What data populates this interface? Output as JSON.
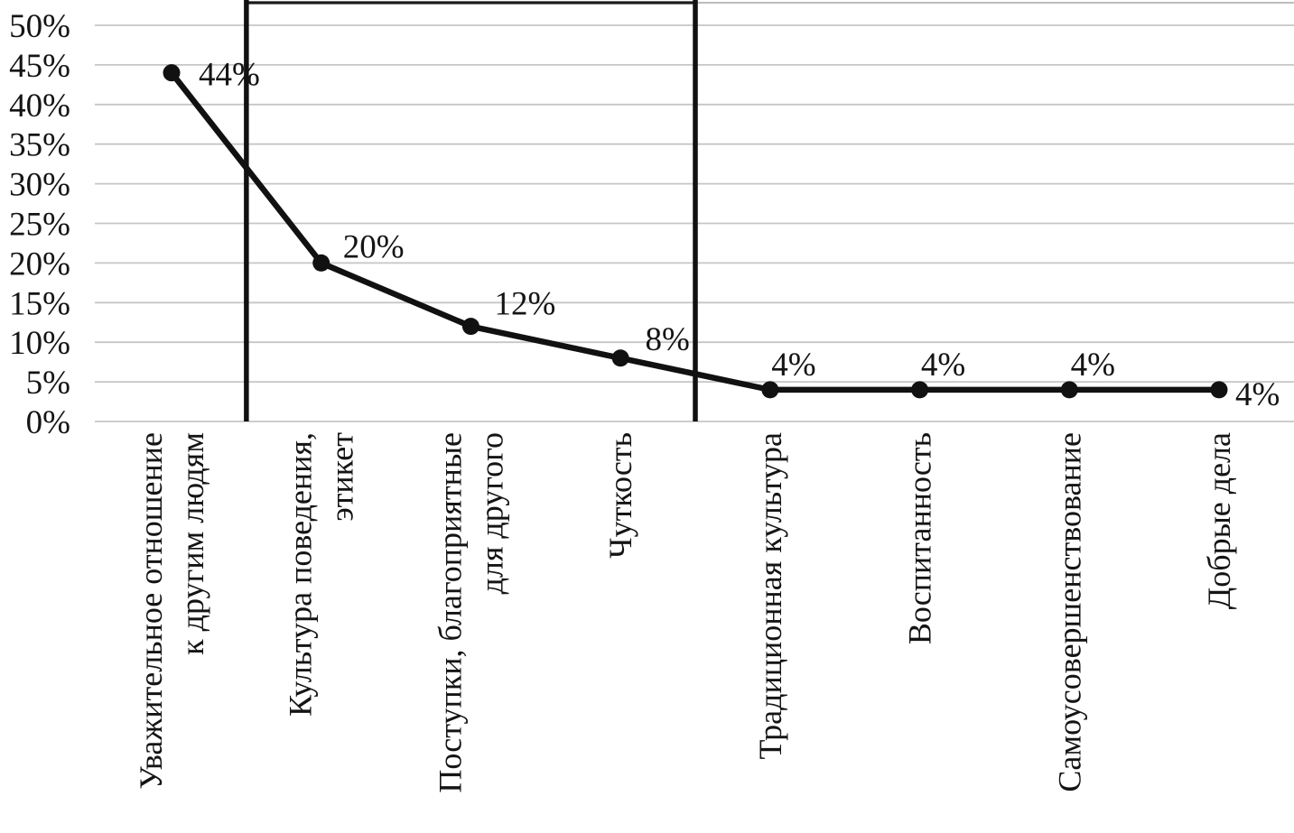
{
  "chart_data": {
    "type": "line",
    "title": "",
    "xlabel": "",
    "ylabel": "",
    "categories": [
      "Уважительное отношение к другим людям",
      "Культура поведения, этикет",
      "Поступки, благоприятные для другого",
      "Чуткость",
      "Традиционная культура",
      "Воспитанность",
      "Самоусовершенствование",
      "Добрые дела"
    ],
    "x_label_lines": [
      [
        "Уважительное отношение",
        "к другим людям"
      ],
      [
        "Культура поведения,",
        "этикет"
      ],
      [
        "Поступки, благоприятные",
        "для другого"
      ],
      [
        "Чуткость"
      ],
      [
        "Традиционная культура"
      ],
      [
        "Воспитанность"
      ],
      [
        "Самоусовершенствование"
      ],
      [
        "Добрые дела"
      ]
    ],
    "values": [
      44,
      20,
      12,
      8,
      4,
      4,
      4,
      4
    ],
    "data_labels": [
      "44%",
      "20%",
      "12%",
      "8%",
      "4%",
      "4%",
      "4%",
      "4%"
    ],
    "y_ticks": [
      "0%",
      "5%",
      "10%",
      "15%",
      "20%",
      "25%",
      "30%",
      "35%",
      "40%",
      "45%",
      "50%"
    ],
    "ylim": [
      0,
      50
    ],
    "y_step": 5,
    "grid": "horizontal",
    "legend": "none",
    "x_labels_rotation_deg": -90,
    "separators_after_category_index": [
      0,
      3
    ],
    "colors": {
      "series": "#111111",
      "marker": "#111111",
      "separator": "#111111",
      "gridline": "#c6c6c6",
      "top_border_dark": "#1a1a1a",
      "top_border_light": "#bdbdbd",
      "text": "#141414",
      "background": "#ffffff"
    }
  }
}
